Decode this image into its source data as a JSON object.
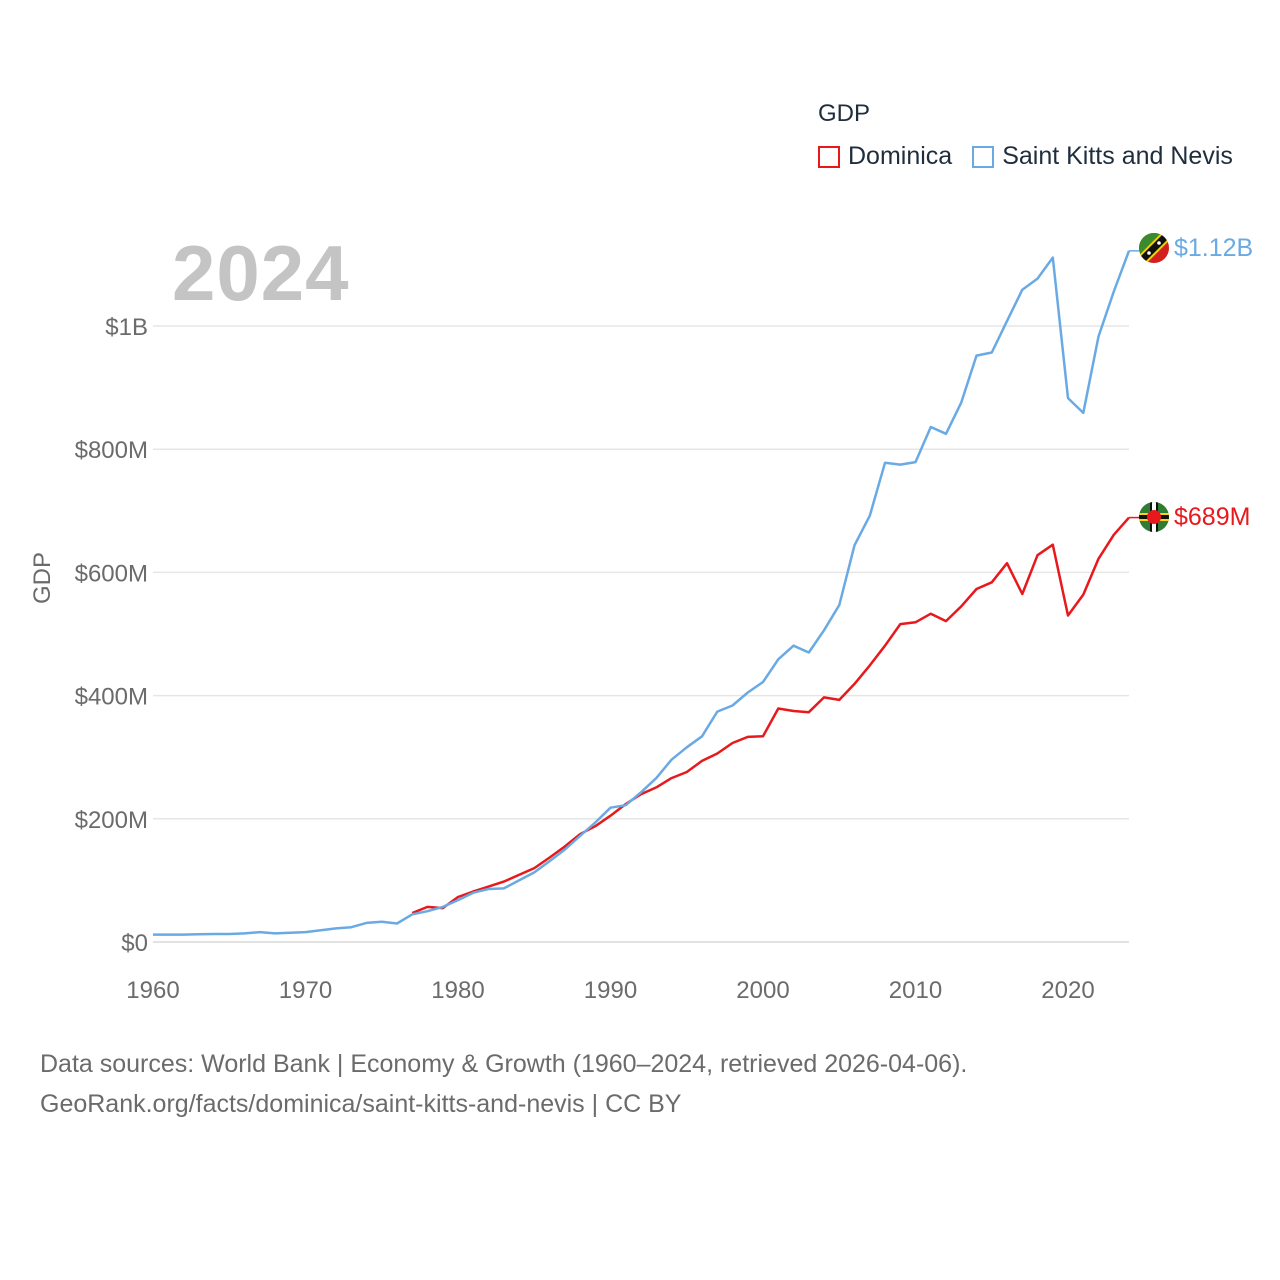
{
  "legend": {
    "title": "GDP",
    "items": [
      {
        "label": "Dominica",
        "color": "#e8191c"
      },
      {
        "label": "Saint Kitts and Nevis",
        "color": "#6aaae4"
      }
    ]
  },
  "year_label": "2024",
  "end_labels": {
    "kn": "$1.12B",
    "dm": "$689M"
  },
  "source": {
    "line1": "Data sources: World Bank | Economy & Growth (1960–2024, retrieved 2026-04-06).",
    "line2": "GeoRank.org/facts/dominica/saint-kitts-and-nevis | CC BY"
  },
  "chart_data": {
    "type": "line",
    "title": "GDP",
    "xlabel": "",
    "ylabel": "GDP",
    "xlim": [
      1960,
      2024
    ],
    "ylim": [
      0,
      1150000000
    ],
    "grid": true,
    "legend_position": "top-right",
    "x_ticks": [
      1960,
      1970,
      1980,
      1990,
      2000,
      2010,
      2020
    ],
    "x_tick_labels": [
      "1960",
      "1970",
      "1980",
      "1990",
      "2000",
      "2010",
      "2020"
    ],
    "y_ticks": [
      0,
      200000000,
      400000000,
      600000000,
      800000000,
      1000000000
    ],
    "y_tick_labels": [
      "$0",
      "$200M",
      "$400M",
      "$600M",
      "$800M",
      "$1B"
    ],
    "series": [
      {
        "name": "Saint Kitts and Nevis",
        "color": "#6aaae4",
        "start_year": 1960,
        "values": [
          12000000,
          12000000,
          12000000,
          12500000,
          13000000,
          13000000,
          14000000,
          16000000,
          14000000,
          15000000,
          16000000,
          19000000,
          22000000,
          24000000,
          31000000,
          33000000,
          30000000,
          45000000,
          50000000,
          57000000,
          68000000,
          80000000,
          86000000,
          87000000,
          100000000,
          113000000,
          131000000,
          150000000,
          172000000,
          194000000,
          218000000,
          222000000,
          243000000,
          266000000,
          296000000,
          316000000,
          334000000,
          374000000,
          384000000,
          405000000,
          422000000,
          459000000,
          481000000,
          470000000,
          506000000,
          547000000,
          644000000,
          692000000,
          778000000,
          775000000,
          779000000,
          836000000,
          825000000,
          876000000,
          952000000,
          957000000,
          1008000000,
          1059000000,
          1077000000,
          1111000000,
          883000000,
          859000000,
          983000000,
          1056000000,
          1122000000
        ]
      },
      {
        "name": "Dominica",
        "color": "#e8191c",
        "start_year": 1977,
        "values": [
          47000000,
          57000000,
          55000000,
          73000000,
          82000000,
          90000000,
          98000000,
          109000000,
          120000000,
          137000000,
          155000000,
          175000000,
          188000000,
          205000000,
          224000000,
          240000000,
          251000000,
          266000000,
          276000000,
          294000000,
          306000000,
          323000000,
          333000000,
          334000000,
          379000000,
          375000000,
          373000000,
          397000000,
          393000000,
          419000000,
          449000000,
          481000000,
          516000000,
          519000000,
          533000000,
          521000000,
          545000000,
          573000000,
          584000000,
          615000000,
          565000000,
          628000000,
          645000000,
          530000000,
          564000000,
          622000000,
          661000000,
          689000000
        ]
      }
    ]
  }
}
